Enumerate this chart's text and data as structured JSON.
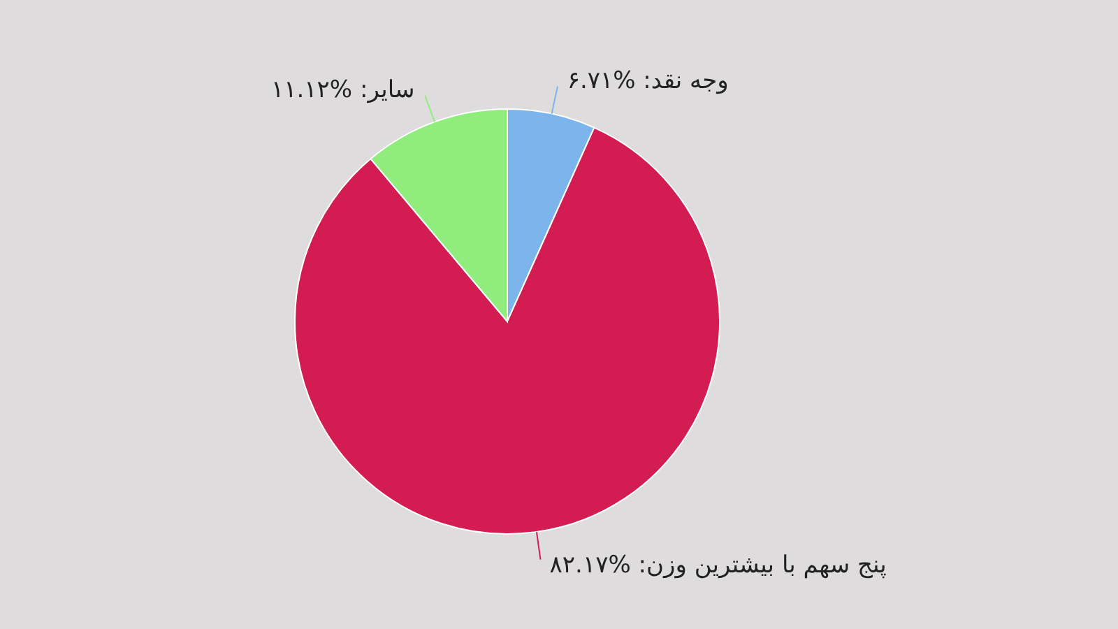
{
  "chart_data": {
    "type": "pie",
    "categories": [
      "وجه نقد",
      "پنج سهم با بیشترین وزن",
      "سایر"
    ],
    "values": [
      6.71,
      82.17,
      11.12
    ],
    "value_labels": [
      "%۶.۷۱",
      "%۸۲.۱۷",
      "%۱۱.۱۲"
    ],
    "colors": [
      "#7cb5ec",
      "#d21c52",
      "#90ed7d"
    ],
    "legend": false
  }
}
